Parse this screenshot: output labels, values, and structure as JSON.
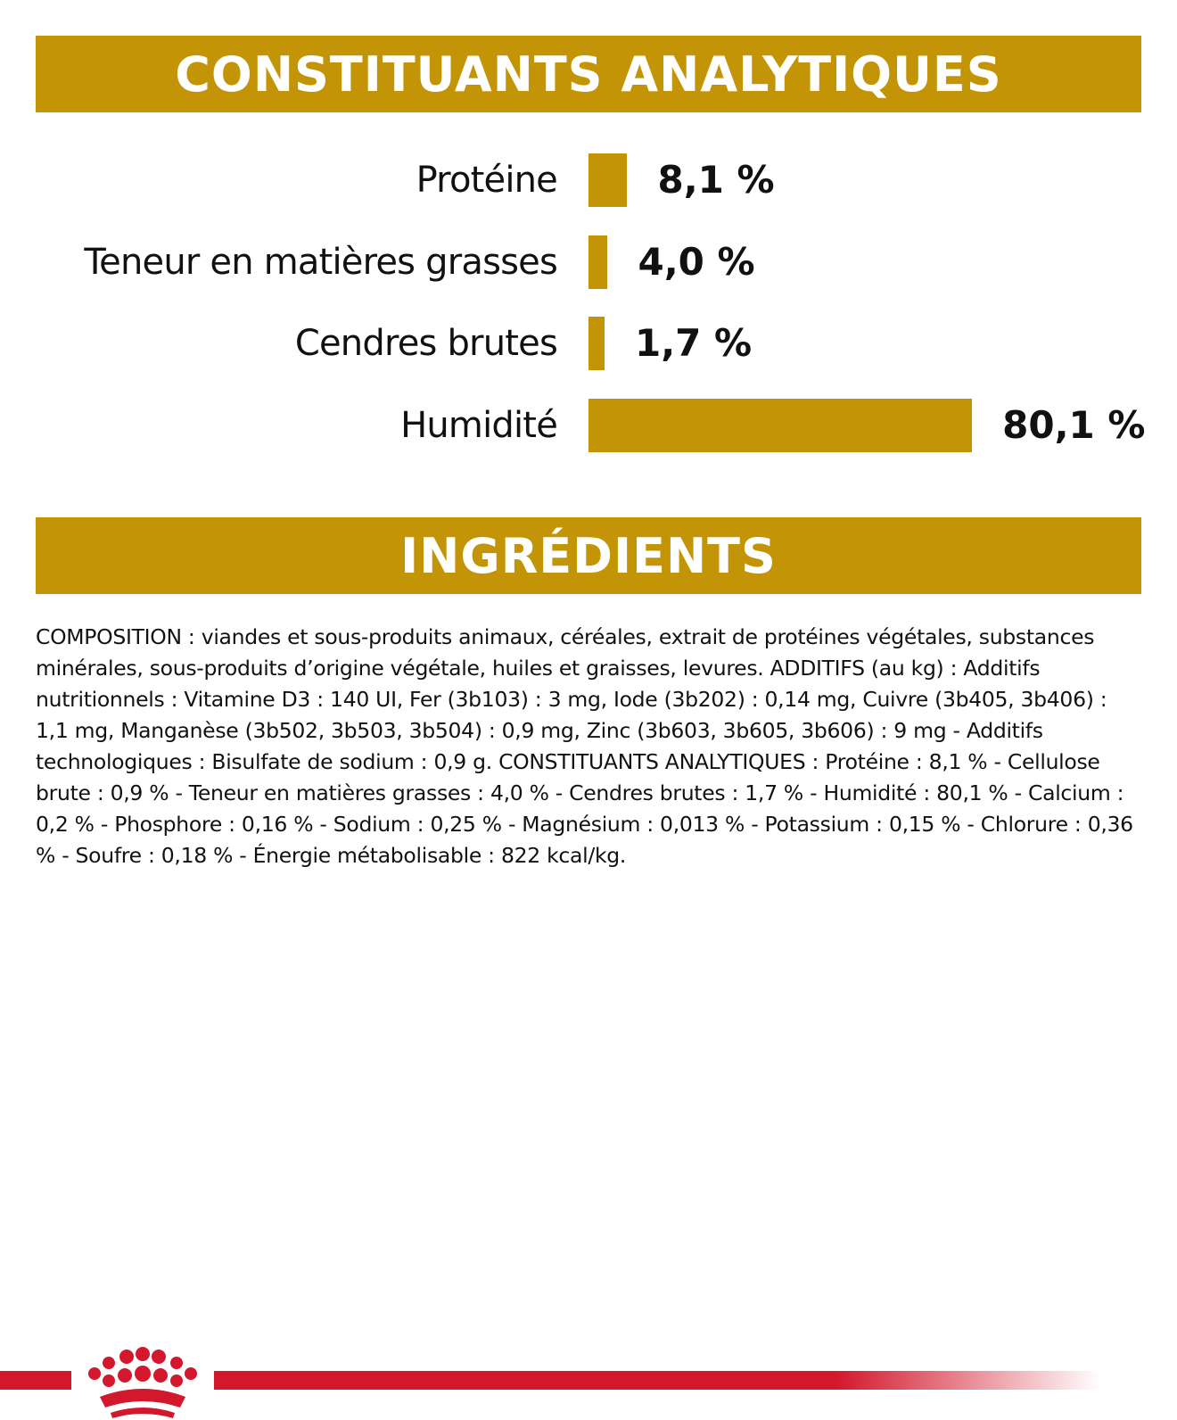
{
  "banners": {
    "analytics": "CONSTITUANTS ANALYTIQUES",
    "ingredients": "INGRÉDIENTS"
  },
  "chart_data": {
    "type": "bar",
    "orientation": "horizontal",
    "categories": [
      "Protéine",
      "Teneur en matières grasses",
      "Cendres brutes",
      "Humidité"
    ],
    "values": [
      8.1,
      4.0,
      1.7,
      80.1
    ],
    "value_labels": [
      "8,1 %",
      "4,0 %",
      "1,7 %",
      "80,1 %"
    ],
    "unit": "%",
    "bar_color": "#c39406",
    "grid": false,
    "legend": "none"
  },
  "composition": "COMPOSITION : viandes et sous-produits animaux, céréales, extrait de protéines végétales, substances minérales, sous-produits d’origine végétale, huiles et graisses, levures. ADDITIFS (au kg) : Additifs nutritionnels : Vitamine D3 : 140 UI, Fer (3b103) : 3 mg, Iode (3b202) : 0,14 mg, Cuivre (3b405, 3b406) : 1,1 mg, Manganèse (3b502, 3b503, 3b504) : 0,9 mg, Zinc (3b603, 3b605, 3b606) : 9 mg - Additifs technologiques : Bisulfate de sodium : 0,9 g. CONSTITUANTS ANALYTIQUES : Protéine : 8,1 % - Cellulose brute : 0,9 % - Teneur en matières grasses : 4,0 % - Cendres brutes : 1,7 % - Humidité : 80,1 % - Calcium : 0,2 % - Phosphore : 0,16 % - Sodium : 0,25 % - Magnésium : 0,013 % - Potassium : 0,15 % - Chlorure : 0,36 % - Soufre : 0,18 % - Énergie métabolisable : 822 kcal/kg.",
  "brand": {
    "logo": "royal-canin-crown-logo",
    "color": "#d3172c"
  }
}
